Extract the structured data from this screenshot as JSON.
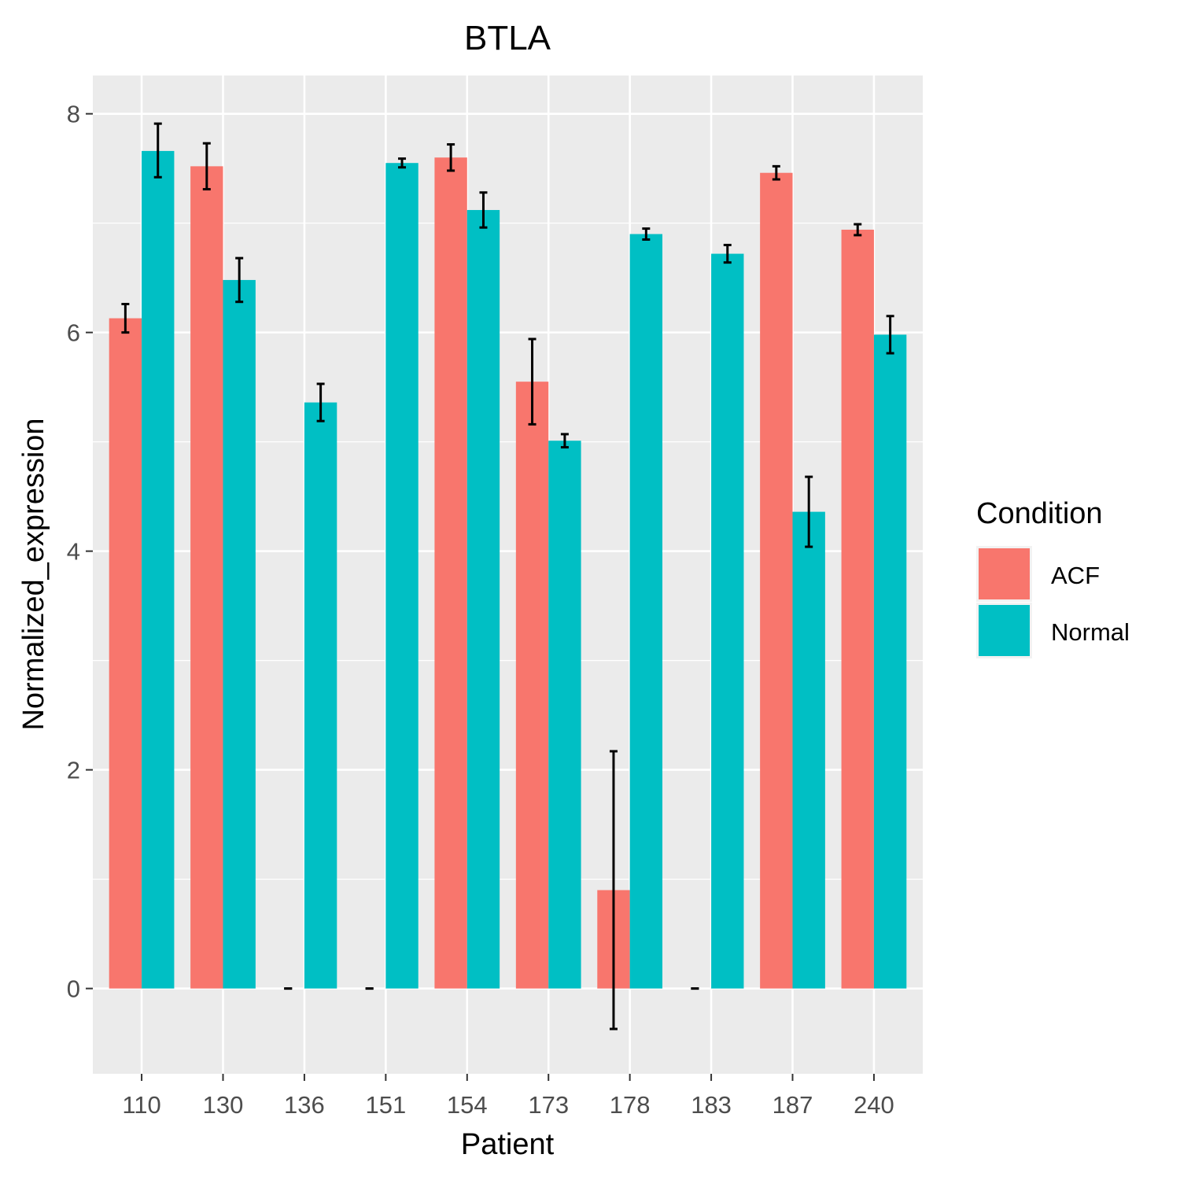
{
  "chart_data": {
    "type": "bar",
    "title": "BTLA",
    "xlabel": "Patient",
    "ylabel": "Normalized_expression",
    "categories": [
      "110",
      "130",
      "136",
      "151",
      "154",
      "173",
      "178",
      "183",
      "187",
      "240"
    ],
    "ylim": [
      -0.78,
      8.35
    ],
    "y_ticks": [
      "0",
      "2",
      "4",
      "6",
      "8"
    ],
    "grid": true,
    "legend": {
      "title": "Condition",
      "placement": "right"
    },
    "series": [
      {
        "name": "ACF",
        "color": "#F8766D",
        "values": [
          6.13,
          7.52,
          0,
          0,
          7.6,
          5.55,
          0.9,
          0,
          7.46,
          6.94
        ],
        "error_low": [
          6.0,
          7.31,
          0,
          0,
          7.48,
          5.16,
          -0.37,
          0,
          7.4,
          6.89
        ],
        "error_high": [
          6.26,
          7.73,
          0,
          0,
          7.72,
          5.94,
          2.17,
          0,
          7.52,
          6.99
        ]
      },
      {
        "name": "Normal",
        "color": "#00BFC4",
        "values": [
          7.66,
          6.48,
          5.36,
          7.55,
          7.12,
          5.01,
          6.9,
          6.72,
          4.36,
          5.98
        ],
        "error_low": [
          7.42,
          6.28,
          5.19,
          7.51,
          6.96,
          4.95,
          6.85,
          6.64,
          4.04,
          5.81
        ],
        "error_high": [
          7.91,
          6.68,
          5.53,
          7.59,
          7.28,
          5.07,
          6.95,
          6.8,
          4.68,
          6.15
        ]
      }
    ]
  }
}
